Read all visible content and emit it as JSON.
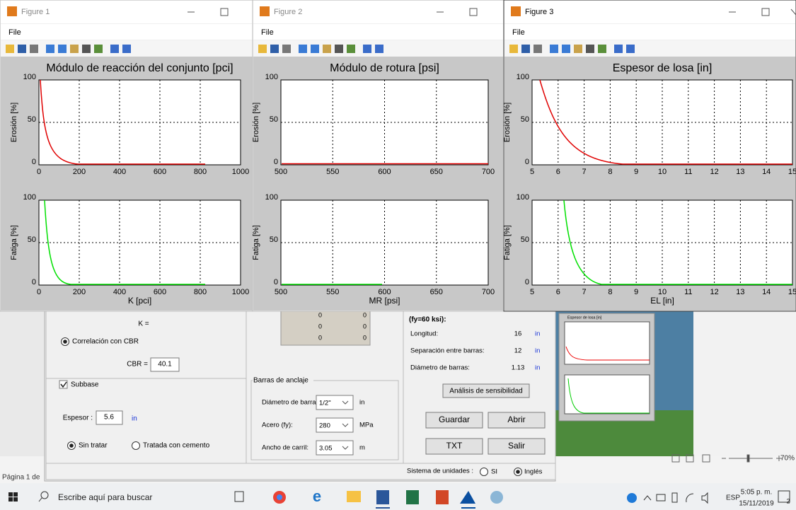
{
  "figures": [
    {
      "title": "Figure 1",
      "menu": "File",
      "plot_title": "Módulo de reacción del conjunto [pci]",
      "axes": [
        {
          "ylabel": "Erosión [%]",
          "xlim": [
            0,
            1000
          ],
          "ylim": [
            0,
            100
          ],
          "xticks": [
            0,
            200,
            400,
            600,
            800,
            1000
          ],
          "yticks": [
            0,
            50,
            100
          ]
        },
        {
          "ylabel": "Fatiga [%]",
          "xlabel": "K [pci]",
          "xlim": [
            0,
            1000
          ],
          "ylim": [
            0,
            100
          ],
          "xticks": [
            0,
            200,
            400,
            600,
            800,
            1000
          ],
          "yticks": [
            0,
            50,
            100
          ]
        }
      ]
    },
    {
      "title": "Figure 2",
      "menu": "File",
      "plot_title": "Módulo de rotura [psi]",
      "axes": [
        {
          "ylabel": "Erosión [%]",
          "xlim": [
            500,
            700
          ],
          "ylim": [
            0,
            100
          ],
          "xticks": [
            500,
            550,
            600,
            650,
            700
          ],
          "yticks": [
            0,
            50,
            100
          ]
        },
        {
          "ylabel": "Fatiga [%]",
          "xlabel": "MR [psi]",
          "xlim": [
            500,
            700
          ],
          "ylim": [
            0,
            100
          ],
          "xticks": [
            500,
            550,
            600,
            650,
            700
          ],
          "yticks": [
            0,
            50,
            100
          ]
        }
      ]
    },
    {
      "title": "Figure 3",
      "menu": "File",
      "plot_title": "Espesor de losa [in]",
      "axes": [
        {
          "ylabel": "Erosión [%]",
          "xlim": [
            5,
            15
          ],
          "ylim": [
            0,
            100
          ],
          "xticks": [
            5,
            6,
            7,
            8,
            9,
            10,
            11,
            12,
            13,
            14,
            15
          ],
          "yticks": [
            0,
            50,
            100
          ]
        },
        {
          "ylabel": "Fatiga [%]",
          "xlabel": "EL [in]",
          "xlim": [
            5,
            15
          ],
          "ylim": [
            0,
            100
          ],
          "xticks": [
            5,
            6,
            7,
            8,
            9,
            10,
            11,
            12,
            13,
            14,
            15
          ],
          "yticks": [
            0,
            50,
            100
          ]
        }
      ]
    }
  ],
  "gui": {
    "k_label": "K =",
    "cbr_radio": "Correlación con CBR",
    "cbr_label": "CBR =",
    "cbr_value": 40.1,
    "subbase_check": "Subbase",
    "espesor_label": "Espesor :",
    "espesor_value": 5.6,
    "espesor_unit": "in",
    "sin_tratar": "Sin tratar",
    "tratada": "Tratada con cemento",
    "table_rows": [
      [
        0,
        0
      ],
      [
        0,
        0
      ],
      [
        0,
        0
      ]
    ],
    "barras_title": "Barras de anclaje",
    "fields": [
      {
        "label": "Diámetro de barra:",
        "value": "1/2\"",
        "unit": "in"
      },
      {
        "label": "Acero (fy):",
        "value": 280,
        "unit": "MPa"
      },
      {
        "label": "Ancho de carril:",
        "value": 3.05,
        "unit": "m"
      }
    ],
    "fy_label": "(fy=60 ksi):",
    "results": [
      {
        "label": "Longitud:",
        "value": 16,
        "unit": "in"
      },
      {
        "label": "Separación entre barras:",
        "value": 12,
        "unit": "in"
      },
      {
        "label": "Diámetro de barras:",
        "value": 1.13,
        "unit": "in"
      }
    ],
    "sensibilidad": "Análisis de sensibilidad",
    "buttons": [
      "Guardar",
      "Abrir",
      "TXT",
      "Salir"
    ],
    "units_label": "Sistema de unidades :",
    "units": [
      "SI",
      "Inglés"
    ],
    "thumbnail_title": "Espesor de losa [in]"
  },
  "word": {
    "page": "Página 1 de",
    "zoom": "70%"
  },
  "taskbar": {
    "search": "Escribe aquí para buscar",
    "lang": "ESP",
    "time": "5:05 p. m.",
    "date": "15/11/2019",
    "notifications": "2"
  }
}
